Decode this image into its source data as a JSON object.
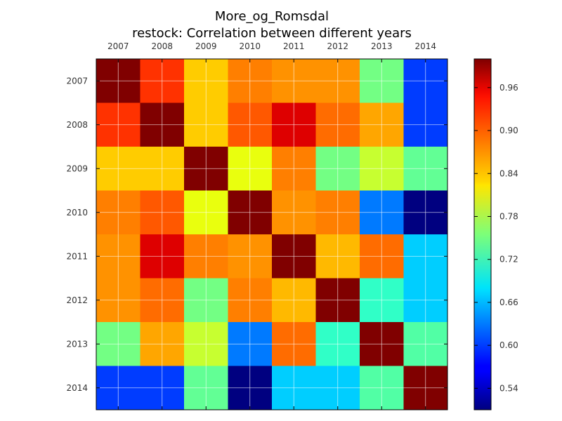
{
  "chart_data": {
    "type": "heatmap",
    "title": "More_og_Romsdal",
    "subtitle": "restock: Correlation between different years",
    "x_categories": [
      "2007",
      "2008",
      "2009",
      "2010",
      "2011",
      "2012",
      "2013",
      "2014"
    ],
    "y_categories": [
      "2007",
      "2008",
      "2009",
      "2010",
      "2011",
      "2012",
      "2013",
      "2014"
    ],
    "values": [
      [
        1.0,
        0.93,
        0.85,
        0.89,
        0.88,
        0.88,
        0.75,
        0.6
      ],
      [
        0.93,
        1.0,
        0.85,
        0.91,
        0.96,
        0.9,
        0.87,
        0.6
      ],
      [
        0.85,
        0.85,
        1.0,
        0.82,
        0.89,
        0.75,
        0.8,
        0.74
      ],
      [
        0.89,
        0.91,
        0.82,
        1.0,
        0.88,
        0.89,
        0.63,
        0.51
      ],
      [
        0.88,
        0.96,
        0.89,
        0.88,
        1.0,
        0.86,
        0.9,
        0.67
      ],
      [
        0.88,
        0.9,
        0.75,
        0.89,
        0.86,
        1.0,
        0.71,
        0.67
      ],
      [
        0.75,
        0.87,
        0.8,
        0.63,
        0.9,
        0.71,
        1.0,
        0.73
      ],
      [
        0.6,
        0.6,
        0.74,
        0.51,
        0.67,
        0.67,
        0.73,
        1.0
      ]
    ],
    "colormap": "jet",
    "vmin": 0.51,
    "vmax": 1.0,
    "colorbar_ticks": [
      "0.54",
      "0.60",
      "0.66",
      "0.72",
      "0.78",
      "0.84",
      "0.90",
      "0.96"
    ],
    "colorbar_tick_values": [
      0.54,
      0.6,
      0.66,
      0.72,
      0.78,
      0.84,
      0.9,
      0.96
    ],
    "x_tick_position": "top",
    "grid": true
  }
}
